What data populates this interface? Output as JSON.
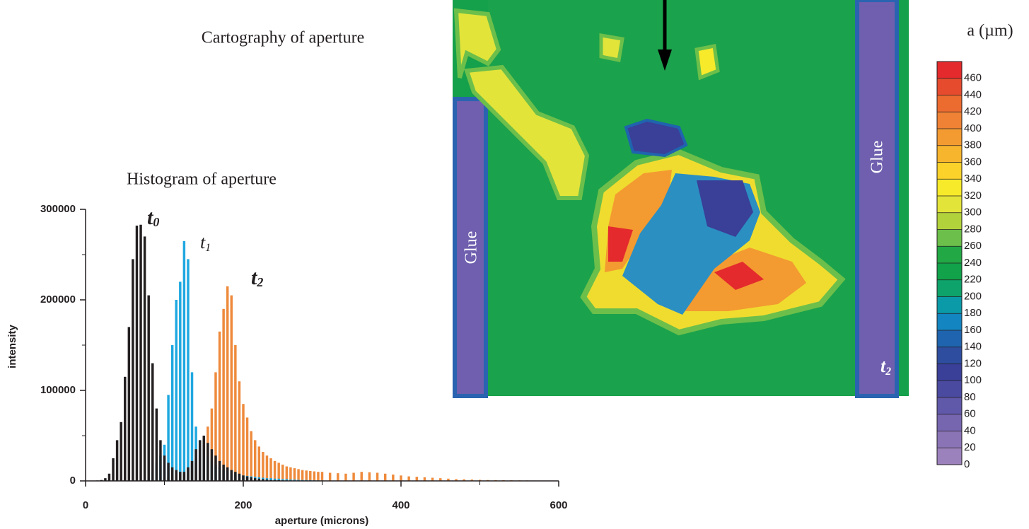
{
  "chart_data": {
    "type": "bar",
    "title": "Histogram of aperture",
    "ylabel": "intensity",
    "xlabel": "aperture (microns)",
    "xlim": [
      0,
      600
    ],
    "ylim": [
      0,
      300000
    ],
    "xticks": [
      0,
      200,
      400,
      600
    ],
    "yticks": [
      0,
      100000,
      200000,
      300000
    ],
    "xminorticks": [
      100,
      300,
      500
    ],
    "yminorticks": [
      50000,
      150000,
      250000
    ],
    "x": [
      10,
      15,
      20,
      25,
      30,
      35,
      40,
      45,
      50,
      55,
      60,
      65,
      70,
      75,
      80,
      85,
      90,
      95,
      100,
      105,
      110,
      115,
      120,
      125,
      130,
      135,
      140,
      145,
      150,
      155,
      160,
      165,
      170,
      175,
      180,
      185,
      190,
      195,
      200,
      205,
      210,
      215,
      220,
      225,
      230,
      235,
      240,
      245,
      250,
      255,
      260,
      265,
      270,
      275,
      280,
      285,
      290,
      295,
      300,
      310,
      320,
      330,
      340,
      350,
      360,
      370,
      380,
      390,
      400,
      410,
      420,
      430,
      440,
      450,
      460,
      470,
      480,
      490,
      500,
      510,
      520,
      530,
      540,
      550,
      560,
      570,
      580,
      590
    ],
    "series": [
      {
        "name": "t2",
        "color": "#ee8a3c",
        "values": [
          0,
          0,
          0,
          0,
          0,
          0,
          0,
          0,
          0,
          0,
          0,
          0,
          0,
          0,
          0,
          0,
          0,
          0,
          3000,
          4000,
          6000,
          8000,
          10000,
          12000,
          15000,
          20000,
          25000,
          35000,
          45000,
          60000,
          80000,
          120000,
          165000,
          190000,
          215000,
          205000,
          150000,
          110000,
          85000,
          70000,
          55000,
          45000,
          38000,
          32000,
          28000,
          25000,
          22000,
          20000,
          18000,
          16000,
          15000,
          14000,
          13000,
          12000,
          11500,
          11000,
          10500,
          10000,
          10000,
          9000,
          8500,
          8000,
          9000,
          10000,
          9500,
          9000,
          8000,
          7000,
          6000,
          5000,
          4500,
          4000,
          3500,
          3000,
          2500,
          2000,
          1800,
          1500,
          1200,
          1000,
          900,
          800,
          700,
          600,
          500,
          400,
          300,
          200
        ]
      },
      {
        "name": "t1",
        "color": "#1ea8e0",
        "values": [
          0,
          0,
          0,
          0,
          0,
          0,
          0,
          0,
          0,
          0,
          0,
          0,
          0,
          0,
          3000,
          10000,
          20000,
          28000,
          40000,
          95000,
          150000,
          200000,
          220000,
          265000,
          245000,
          120000,
          60000,
          45000,
          35000,
          28000,
          22000,
          18000,
          15000,
          12000,
          10000,
          9000,
          8000,
          7000,
          6000,
          5500,
          5000,
          4500,
          4000,
          3500,
          3000,
          3000,
          2500,
          2500,
          2000,
          2000,
          1500,
          1500,
          1200,
          1000,
          1000,
          800,
          700,
          600,
          500,
          400,
          300,
          200,
          200,
          100,
          0,
          0,
          0,
          0,
          0,
          0,
          0,
          0,
          0,
          0,
          0,
          0,
          0,
          0,
          0,
          0,
          0,
          0,
          0,
          0,
          0,
          0,
          0,
          0
        ]
      },
      {
        "name": "t0",
        "color": "#231f20",
        "values": [
          0,
          500,
          1000,
          3000,
          8000,
          25000,
          45000,
          65000,
          115000,
          170000,
          245000,
          282000,
          283000,
          270000,
          205000,
          130000,
          80000,
          45000,
          28000,
          20000,
          15000,
          12000,
          10000,
          10000,
          15000,
          22000,
          35000,
          45000,
          50000,
          42000,
          35000,
          28000,
          22000,
          18000,
          15000,
          12000,
          10000,
          8000,
          6000,
          5000,
          4000,
          3000,
          2500,
          2000,
          1500,
          1000,
          1000,
          800,
          600,
          500,
          400,
          300,
          200,
          200,
          100,
          100,
          100,
          0,
          0,
          0,
          0,
          0,
          0,
          0,
          0,
          0,
          0,
          0,
          0,
          0,
          0,
          0,
          0,
          0,
          0,
          0,
          0,
          0,
          0,
          0,
          0,
          0,
          0,
          0,
          0,
          0,
          0,
          0
        ]
      }
    ]
  },
  "map": {
    "title": "Cartography of aperture",
    "labels": [
      "Glue",
      "Glue"
    ],
    "colorbar": {
      "title": "a (µm)",
      "range": [
        0,
        480
      ],
      "ticks": [
        0,
        20,
        40,
        60,
        80,
        100,
        120,
        140,
        160,
        180,
        200,
        220,
        240,
        260,
        280,
        300,
        320,
        340,
        360,
        380,
        400,
        420,
        440,
        460
      ],
      "colors": [
        "#9c82bc",
        "#8a74b6",
        "#7666b0",
        "#6058a8",
        "#4a4aa0",
        "#3a3f98",
        "#2e4d9f",
        "#1f64ae",
        "#1385c0",
        "#0b9aa8",
        "#0ea36a",
        "#11a24a",
        "#22a845",
        "#6cbf4a",
        "#b2d23b",
        "#e3e43a",
        "#f7ea2a",
        "#fbd22a",
        "#f7b52d",
        "#f39a31",
        "#ef8234",
        "#ec6b2f",
        "#e64b2e",
        "#e42a2c"
      ]
    }
  }
}
